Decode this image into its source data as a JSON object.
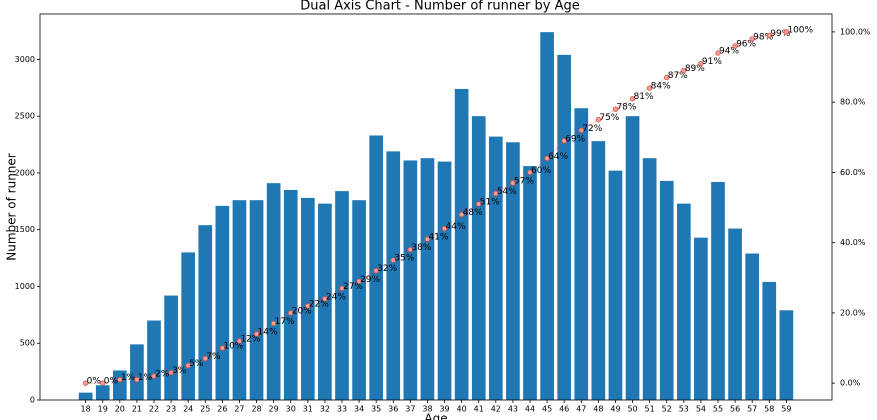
{
  "chart_data": {
    "type": "bar_line",
    "title": "Dual Axis Chart - Number of runner by Age",
    "xlabel": "Age",
    "ylabel": "Number of runner",
    "categories": [
      "18",
      "19",
      "20",
      "21",
      "22",
      "23",
      "24",
      "25",
      "26",
      "27",
      "28",
      "29",
      "30",
      "31",
      "32",
      "33",
      "34",
      "35",
      "36",
      "37",
      "38",
      "39",
      "40",
      "41",
      "42",
      "43",
      "44",
      "45",
      "46",
      "47",
      "48",
      "49",
      "50",
      "51",
      "52",
      "53",
      "54",
      "55",
      "56",
      "57",
      "58",
      "59"
    ],
    "series": [
      {
        "type": "bar",
        "color": "#1f77b4",
        "values": [
          65,
          130,
          260,
          490,
          700,
          920,
          1300,
          1540,
          1710,
          1760,
          1760,
          1910,
          1850,
          1780,
          1730,
          1840,
          1760,
          2330,
          2190,
          2110,
          2130,
          2100,
          2740,
          2500,
          2320,
          2270,
          2060,
          3240,
          3040,
          2570,
          2280,
          2020,
          2500,
          2130,
          1930,
          1730,
          1430,
          1920,
          1510,
          1290,
          1040,
          790
        ]
      },
      {
        "type": "line",
        "axis": "y2",
        "color": "#e74c3c",
        "values": [
          0,
          0,
          1,
          1,
          2,
          3,
          5,
          7,
          10,
          12,
          14,
          17,
          20,
          22,
          24,
          27,
          29,
          32,
          35,
          38,
          41,
          44,
          48,
          51,
          54,
          57,
          60,
          64,
          69,
          72,
          75,
          78,
          81,
          84,
          87,
          89,
          91,
          94,
          96,
          98,
          99,
          100
        ],
        "value_labels": [
          "0%",
          "0%",
          "1%",
          "1%",
          "2%",
          "3%",
          "5%",
          "7%",
          "10%",
          "12%",
          "14%",
          "17%",
          "20%",
          "22%",
          "24%",
          "27%",
          "29%",
          "32%",
          "35%",
          "38%",
          "41%",
          "44%",
          "48%",
          "51%",
          "54%",
          "57%",
          "60%",
          "64%",
          "69%",
          "72%",
          "75%",
          "78%",
          "81%",
          "84%",
          "87%",
          "89%",
          "91%",
          "94%",
          "96%",
          "98%",
          "99%",
          "100%"
        ]
      }
    ],
    "ylim": [
      0,
      3400
    ],
    "yticks": [
      0,
      500,
      1000,
      1500,
      2000,
      2500,
      3000
    ],
    "y2lim": [
      -4.8,
      105.1
    ],
    "y2ticks": [
      {
        "value": 0,
        "label": "0.0%"
      },
      {
        "value": 20,
        "label": "20.0%"
      },
      {
        "value": 40,
        "label": "40.0%"
      },
      {
        "value": 60,
        "label": "60.0%"
      },
      {
        "value": 80,
        "label": "80.0%"
      },
      {
        "value": 100,
        "label": "100.0%"
      }
    ]
  }
}
